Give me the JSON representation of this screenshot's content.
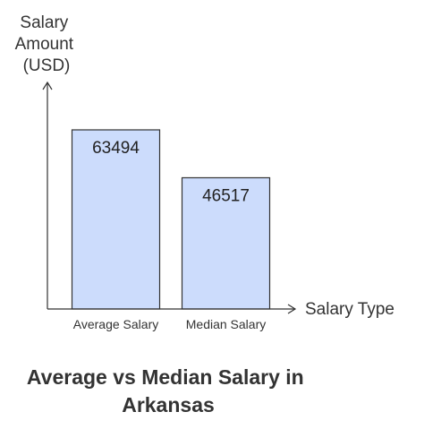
{
  "chart_data": {
    "type": "bar",
    "title": [
      "Average vs Median Salary in",
      "Arkansas"
    ],
    "xlabel": "Salary Type",
    "ylabel": [
      "Salary",
      "Amount",
      "(USD)"
    ],
    "categories": [
      "Average Salary",
      "Median Salary"
    ],
    "values": [
      63494,
      46517
    ],
    "data_labels": [
      "63494",
      "46517"
    ],
    "ylim": [
      0,
      80000
    ],
    "grid": false,
    "legend": "none",
    "colors": {
      "bar_fill": "#ccdcfc",
      "bar_stroke": "#333333",
      "axis": "#333333",
      "text": "#333333"
    }
  }
}
